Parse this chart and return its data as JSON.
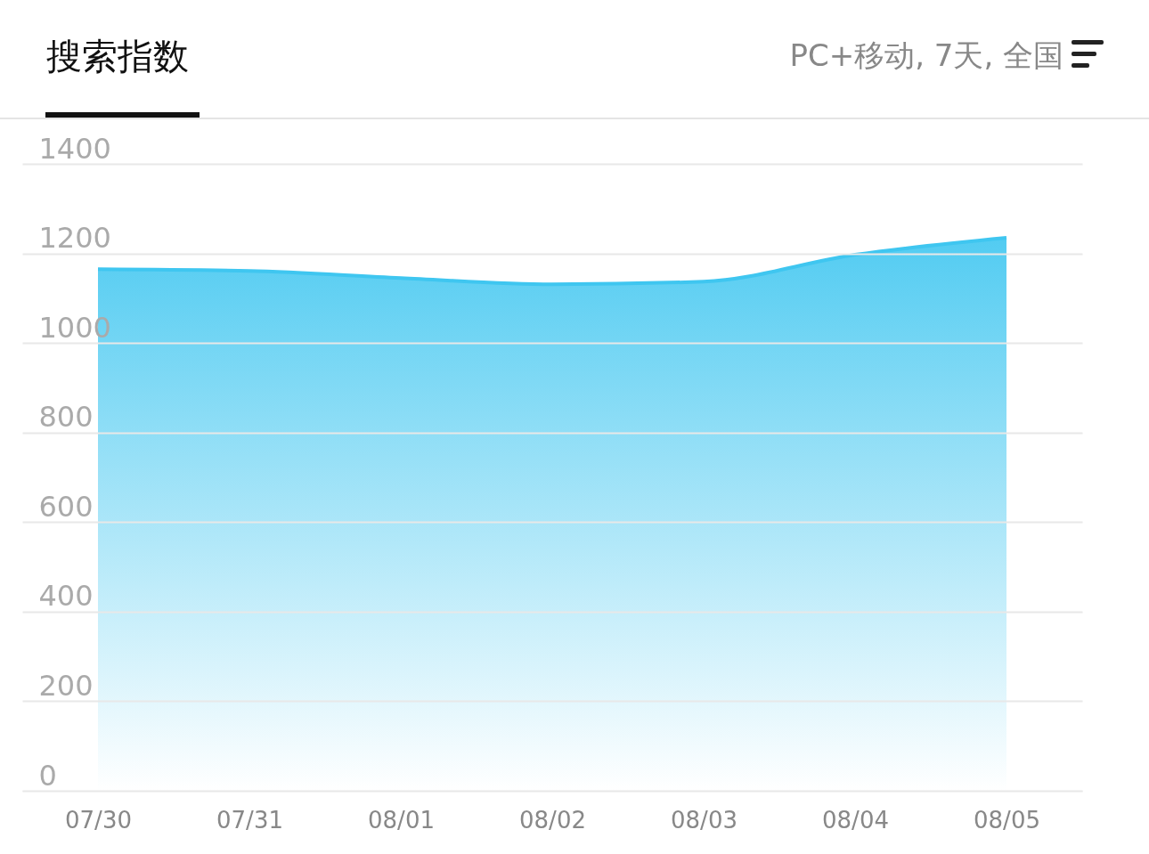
{
  "chart_data": {
    "type": "area",
    "title": "搜索指数",
    "subtitle": "PC+移动, 7天, 全国",
    "categories": [
      "07/30",
      "07/31",
      "08/01",
      "08/02",
      "08/03",
      "08/04",
      "08/05"
    ],
    "series": [
      {
        "color": "#3fc6f0",
        "values": [
          1165,
          1161,
          1145,
          1131,
          1137,
          1197,
          1235
        ]
      }
    ],
    "ylim": [
      0,
      1400
    ],
    "yticks": [
      0,
      200,
      400,
      600,
      800,
      1000,
      1200,
      1400
    ],
    "grid": "y"
  }
}
